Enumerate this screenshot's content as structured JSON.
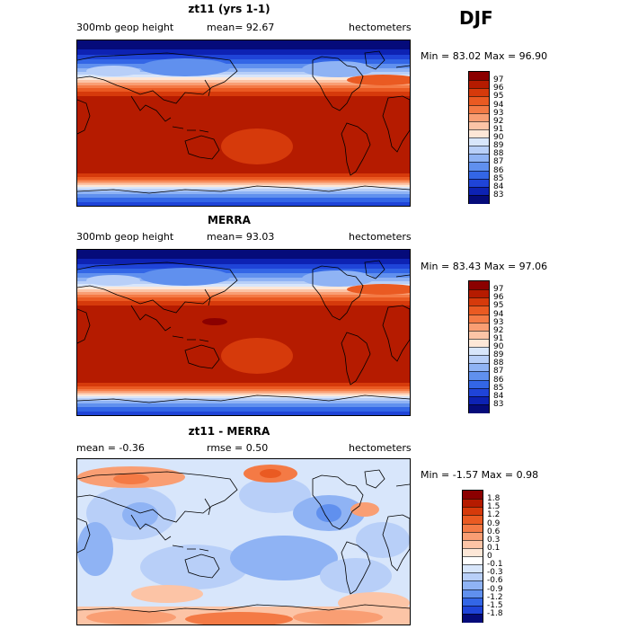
{
  "season": "DJF",
  "panels": [
    {
      "title": "zt11 (yrs 1-1)",
      "left": "300mb geop height",
      "mean": "mean=  92.67",
      "units": "hectometers",
      "minmax": "Min =  83.02 Max =  96.90",
      "kind": "full",
      "colorbar": {
        "labels": [
          "97",
          "96",
          "95",
          "94",
          "93",
          "92",
          "91",
          "90",
          "89",
          "88",
          "87",
          "86",
          "85",
          "84",
          "83"
        ],
        "colors": [
          "#8b0000",
          "#b51b00",
          "#d63a0b",
          "#ea5a22",
          "#f47a45",
          "#f99e73",
          "#fcc4a6",
          "#fde7d7",
          "#d8e6fb",
          "#b8cff8",
          "#8fb3f4",
          "#6090ee",
          "#3366e6",
          "#1f44d8",
          "#0d22b3",
          "#050b7a"
        ]
      }
    },
    {
      "title": "MERRA",
      "left": "300mb geop height",
      "mean": "mean=  93.03",
      "units": "hectometers",
      "minmax": "Min =  83.43 Max =  97.06",
      "kind": "full",
      "colorbar": {
        "labels": [
          "97",
          "96",
          "95",
          "94",
          "93",
          "92",
          "91",
          "90",
          "89",
          "88",
          "87",
          "86",
          "85",
          "84",
          "83"
        ],
        "colors": [
          "#8b0000",
          "#b51b00",
          "#d63a0b",
          "#ea5a22",
          "#f47a45",
          "#f99e73",
          "#fcc4a6",
          "#fde7d7",
          "#d8e6fb",
          "#b8cff8",
          "#8fb3f4",
          "#6090ee",
          "#3366e6",
          "#1f44d8",
          "#0d22b3",
          "#050b7a"
        ]
      }
    },
    {
      "title": "zt11 - MERRA",
      "left": "mean =   -0.36",
      "mean": "rmse =   0.50",
      "units": "hectometers",
      "minmax": "Min =  -1.57 Max =   0.98",
      "kind": "diff",
      "colorbar": {
        "labels": [
          "1.8",
          "1.5",
          "1.2",
          "0.9",
          "0.6",
          "0.3",
          "0.1",
          "0",
          "-0.1",
          "-0.3",
          "-0.6",
          "-0.9",
          "-1.2",
          "-1.5",
          "-1.8"
        ],
        "colors": [
          "#8b0000",
          "#b51b00",
          "#d63a0b",
          "#ea5a22",
          "#f47a45",
          "#f99e73",
          "#fcc4a6",
          "#fde7d7",
          "#ffffff",
          "#d8e6fb",
          "#b8cff8",
          "#8fb3f4",
          "#6090ee",
          "#3366e6",
          "#1f44d8",
          "#050b7a"
        ]
      }
    }
  ]
}
